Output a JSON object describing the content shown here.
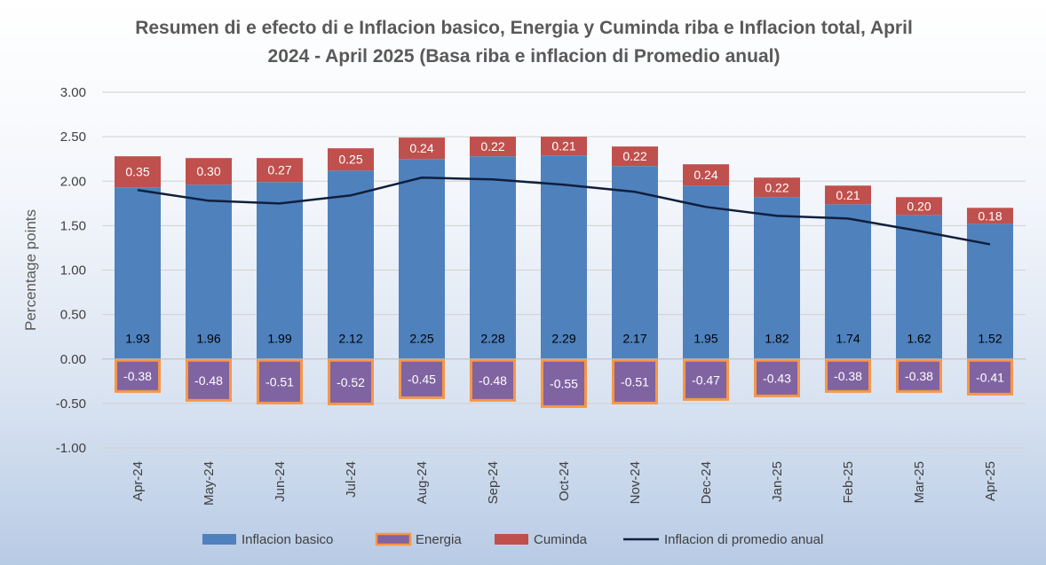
{
  "chart_data": {
    "type": "bar",
    "title_line1": "Resumen di e efecto di e Inflacion basico, Energia y Cuminda riba e Inflacion total, April",
    "title_line2": "2024 - April 2025 (Basa riba e inflacion di Promedio anual)",
    "ylabel": "Percentage points",
    "ylim": [
      -1.0,
      3.0
    ],
    "yticks": [
      "3.00",
      "2.50",
      "2.00",
      "1.50",
      "1.00",
      "0.50",
      "0.00",
      "-0.50",
      "-1.00"
    ],
    "ytick_values": [
      3.0,
      2.5,
      2.0,
      1.5,
      1.0,
      0.5,
      0.0,
      -0.5,
      -1.0
    ],
    "categories": [
      "Apr-24",
      "May-24",
      "Jun-24",
      "Jul-24",
      "Aug-24",
      "Sep-24",
      "Oct-24",
      "Nov-24",
      "Dec-24",
      "Jan-25",
      "Feb-25",
      "Mar-25",
      "Apr-25"
    ],
    "series": [
      {
        "name": "Inflacion basico",
        "type": "bar",
        "color": "#4f81bd",
        "values": [
          1.93,
          1.96,
          1.99,
          2.12,
          2.25,
          2.28,
          2.29,
          2.17,
          1.95,
          1.82,
          1.74,
          1.62,
          1.52
        ],
        "labels": [
          "1.93",
          "1.96",
          "1.99",
          "2.12",
          "2.25",
          "2.28",
          "2.29",
          "2.17",
          "1.95",
          "1.82",
          "1.74",
          "1.62",
          "1.52"
        ]
      },
      {
        "name": "Energia",
        "type": "bar",
        "color": "#8064a2",
        "border": "#f79646",
        "values": [
          -0.38,
          -0.48,
          -0.51,
          -0.52,
          -0.45,
          -0.48,
          -0.55,
          -0.51,
          -0.47,
          -0.43,
          -0.38,
          -0.38,
          -0.41
        ],
        "labels": [
          "-0.38",
          "-0.48",
          "-0.51",
          "-0.52",
          "-0.45",
          "-0.48",
          "-0.55",
          "-0.51",
          "-0.47",
          "-0.43",
          "-0.38",
          "-0.38",
          "-0.41"
        ]
      },
      {
        "name": "Cuminda",
        "type": "bar",
        "color": "#c0504d",
        "values": [
          0.35,
          0.3,
          0.27,
          0.25,
          0.24,
          0.22,
          0.21,
          0.22,
          0.24,
          0.22,
          0.21,
          0.2,
          0.18
        ],
        "labels": [
          "0.35",
          "0.30",
          "0.27",
          "0.25",
          "0.24",
          "0.22",
          "0.21",
          "0.22",
          "0.24",
          "0.22",
          "0.21",
          "0.20",
          "0.18"
        ]
      },
      {
        "name": "Inflacion di promedio anual",
        "type": "line",
        "color": "#0f1f3d",
        "values": [
          1.9,
          1.78,
          1.75,
          1.84,
          2.04,
          2.02,
          1.96,
          1.88,
          1.71,
          1.61,
          1.58,
          1.44,
          1.29
        ]
      }
    ],
    "grid": true,
    "legend_placement": "bottom"
  }
}
